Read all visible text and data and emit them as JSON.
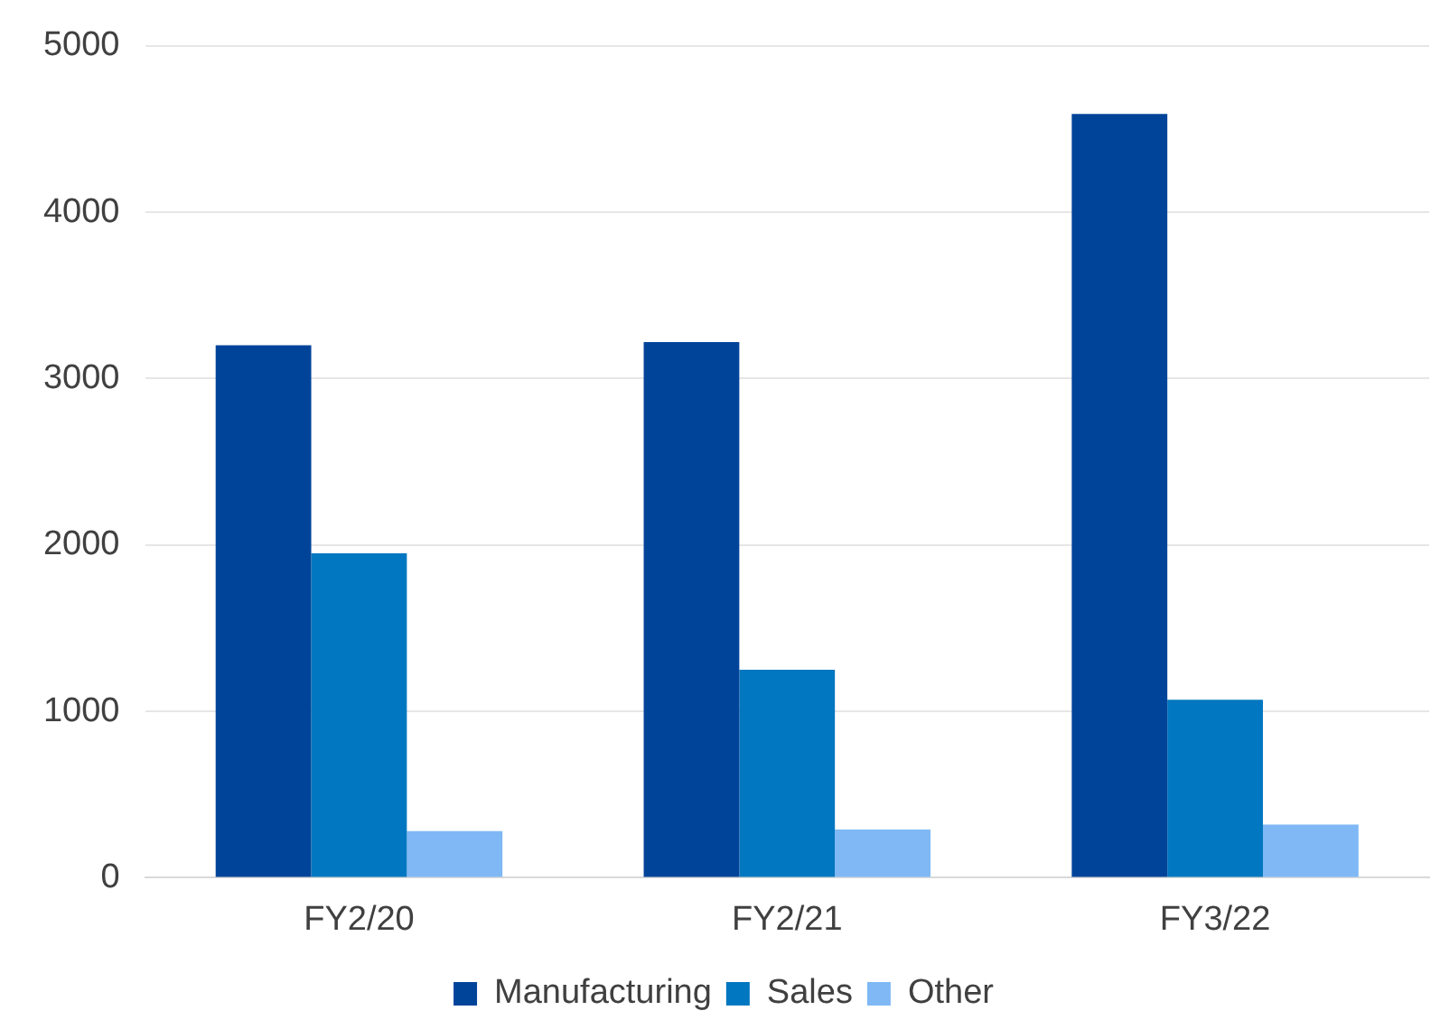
{
  "chart_data": {
    "type": "bar",
    "categories": [
      "FY2/20",
      "FY2/21",
      "FY3/22"
    ],
    "series": [
      {
        "name": "Manufacturing",
        "color": "#00449a",
        "values": [
          3200,
          3220,
          4590
        ]
      },
      {
        "name": "Sales",
        "color": "#0077c0",
        "values": [
          1950,
          1250,
          1070
        ]
      },
      {
        "name": "Other",
        "color": "#7fb8f5",
        "values": [
          280,
          290,
          320
        ]
      }
    ],
    "ylim": [
      0,
      5000
    ],
    "yticks": [
      0,
      1000,
      2000,
      3000,
      4000,
      5000
    ],
    "grid": "y",
    "legend": "bottom"
  }
}
